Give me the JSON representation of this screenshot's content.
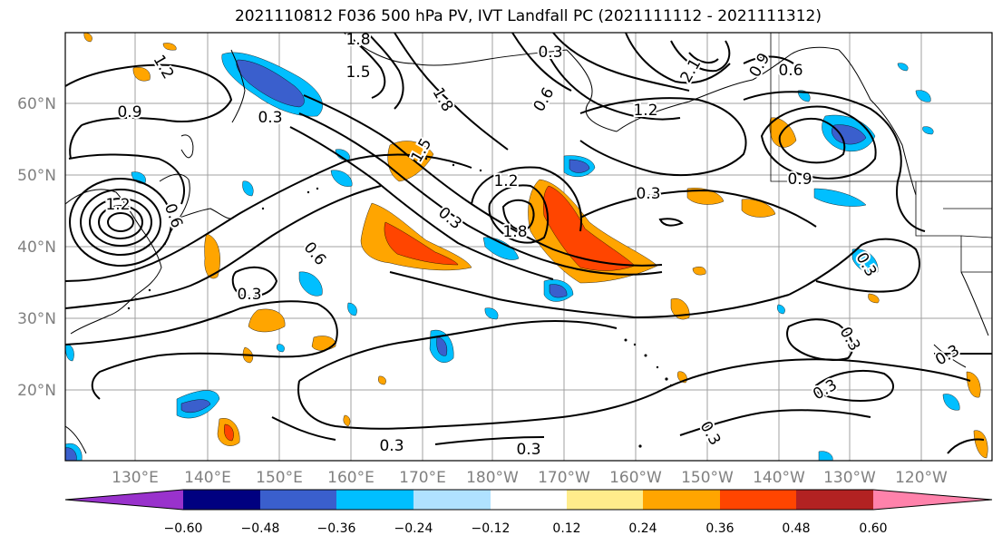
{
  "title": "2021110812 F036 500 hPa PV, IVT Landfall PC (2021111112 - 2021111312)",
  "lat_labels": [
    "60°N",
    "50°N",
    "40°N",
    "30°N",
    "20°N"
  ],
  "lon_labels": [
    "130°E",
    "140°E",
    "150°E",
    "160°E",
    "170°E",
    "180°W",
    "170°W",
    "160°W",
    "150°W",
    "140°W",
    "130°W",
    "120°W"
  ],
  "colorbar": {
    "colors": [
      "#9932cc",
      "#000080",
      "#3a5fcd",
      "#00bfff",
      "#b0e2ff",
      "#ffffff",
      "#ffec8b",
      "#ffa500",
      "#ff4500",
      "#b22222",
      "#ff82ab"
    ],
    "tick_labels": [
      "−0.60",
      "−0.48",
      "−0.36",
      "−0.24",
      "−0.12",
      "0.12",
      "0.24",
      "0.36",
      "0.48",
      "0.60"
    ]
  },
  "contour_labels": [
    "1.2",
    "1.8",
    "1.5",
    "0.3",
    "0.9",
    "2.1",
    "0.6",
    "1.8",
    "0.9",
    "1.2",
    "0.3",
    "0.6",
    "0.3",
    "0.3",
    "0.3",
    "0.3",
    "0.3",
    "0.3",
    "0.3",
    "1.5",
    "1.2",
    "1.8",
    "0.3",
    "1.2",
    "0.6",
    "0.9",
    "0.6",
    "0.3",
    "0.3"
  ]
}
